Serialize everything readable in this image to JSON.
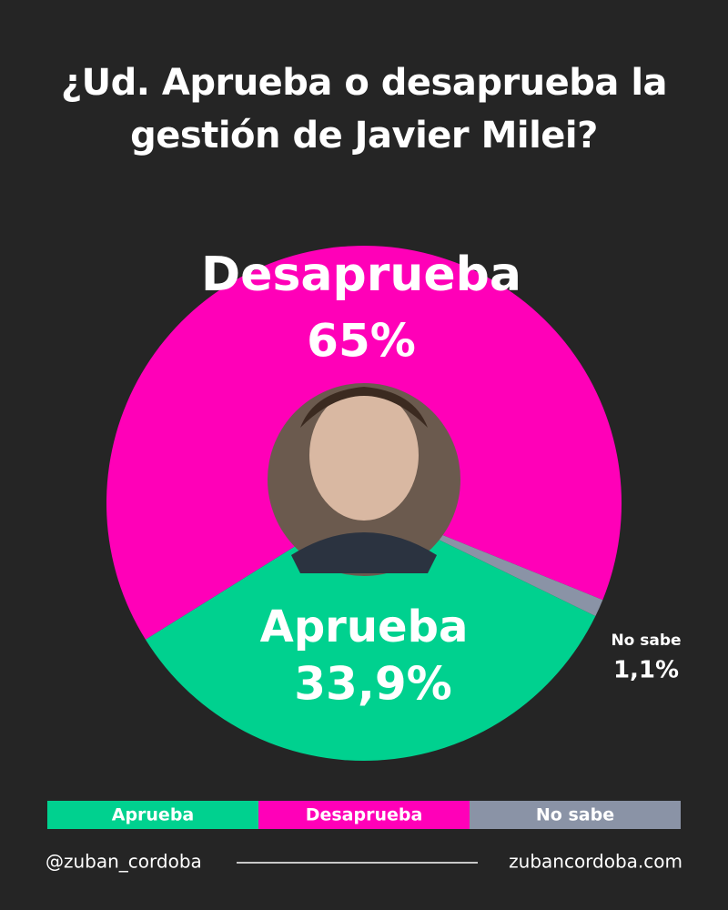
{
  "chart_data": {
    "type": "pie",
    "title": "¿Ud. Aprueba o desaprueba la gestión de Javier Milei?",
    "categories": [
      "Aprueba",
      "Desaprueba",
      "No sabe"
    ],
    "values": [
      33.9,
      65,
      1.1
    ],
    "value_labels": [
      "33,9%",
      "65%",
      "1,1%"
    ],
    "colors": [
      "#00d18f",
      "#ff00b8",
      "#8a93a6"
    ]
  },
  "footer": {
    "handle": "@zuban_cordoba",
    "website": "zubancordoba.com"
  }
}
